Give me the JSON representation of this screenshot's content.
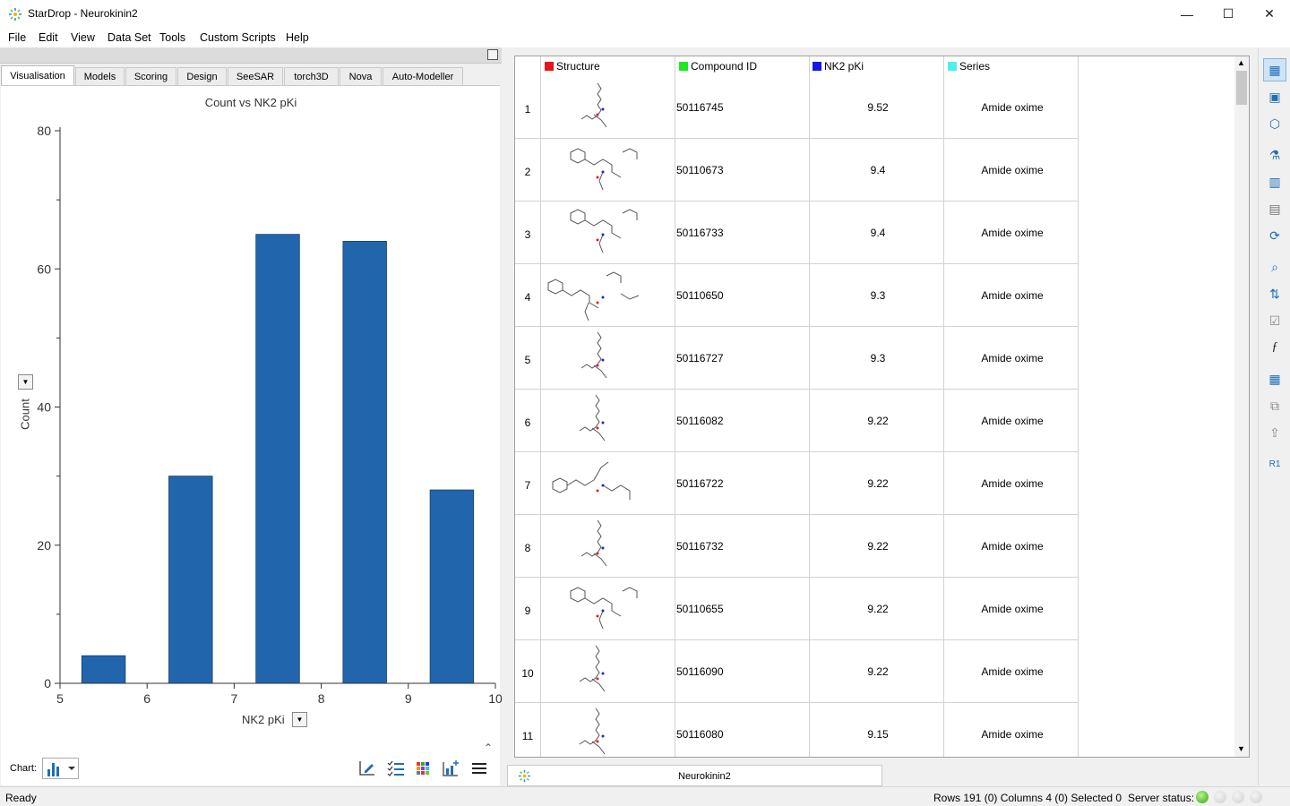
{
  "window": {
    "title": "StarDrop - Neurokinin2",
    "minimize": "—",
    "maximize": "☐",
    "close": "✕"
  },
  "menu": [
    "File",
    "Edit",
    "View",
    "Data Set",
    "Tools",
    "Custom Scripts",
    "Help"
  ],
  "tabs": [
    "Visualisation",
    "Models",
    "Scoring",
    "Design",
    "SeeSAR",
    "torch3D",
    "Nova",
    "Auto-Modeller"
  ],
  "chart_data": {
    "type": "bar",
    "title": "Count vs NK2 pKi",
    "xlabel": "NK2 pKi",
    "ylabel": "Count",
    "bins": [
      [
        5,
        6
      ],
      [
        6,
        7
      ],
      [
        7,
        8
      ],
      [
        8,
        9
      ],
      [
        9,
        10
      ]
    ],
    "values": [
      4,
      30,
      65,
      64,
      28
    ],
    "xlim": [
      5,
      10
    ],
    "ylim": [
      0,
      80
    ],
    "xticks": [
      "5",
      "6",
      "7",
      "8",
      "9",
      "10"
    ],
    "yticks": [
      "0",
      "20",
      "40",
      "60",
      "80"
    ],
    "bar_color": "#2166ac"
  },
  "chart_controls": {
    "label": "Chart:"
  },
  "table": {
    "columns": [
      {
        "label": "Structure",
        "color": "#e8141b"
      },
      {
        "label": "Compound ID",
        "color": "#1ee81e"
      },
      {
        "label": "NK2 pKi",
        "color": "#1616e8"
      },
      {
        "label": "Series",
        "color": "#4feeee"
      }
    ],
    "rows": [
      {
        "n": "1",
        "id": "50116745",
        "pki": "9.52",
        "series": "Amide oxime"
      },
      {
        "n": "2",
        "id": "50110673",
        "pki": "9.4",
        "series": "Amide oxime"
      },
      {
        "n": "3",
        "id": "50116733",
        "pki": "9.4",
        "series": "Amide oxime"
      },
      {
        "n": "4",
        "id": "50110650",
        "pki": "9.3",
        "series": "Amide oxime"
      },
      {
        "n": "5",
        "id": "50116727",
        "pki": "9.3",
        "series": "Amide oxime"
      },
      {
        "n": "6",
        "id": "50116082",
        "pki": "9.22",
        "series": "Amide oxime"
      },
      {
        "n": "7",
        "id": "50116722",
        "pki": "9.22",
        "series": "Amide oxime"
      },
      {
        "n": "8",
        "id": "50116732",
        "pki": "9.22",
        "series": "Amide oxime"
      },
      {
        "n": "9",
        "id": "50110655",
        "pki": "9.22",
        "series": "Amide oxime"
      },
      {
        "n": "10",
        "id": "50116090",
        "pki": "9.22",
        "series": "Amide oxime"
      },
      {
        "n": "11",
        "id": "50116080",
        "pki": "9.15",
        "series": "Amide oxime"
      }
    ]
  },
  "document_tab": {
    "label": "Neurokinin2"
  },
  "status": {
    "ready": "Ready",
    "counts": "Rows 191 (0) Columns 4 (0) Selected 0",
    "server": "Server status:"
  },
  "sidebar_icons": [
    "table-view-icon",
    "card-view-icon",
    "shapes-icon",
    "chemistry-icon",
    "columns-icon",
    "grid-icon",
    "refresh-icon",
    "search-icon",
    "sort-icon",
    "filter-icon",
    "function-icon",
    "table-settings-icon",
    "copy-icon",
    "export-icon",
    "r-group-icon"
  ]
}
